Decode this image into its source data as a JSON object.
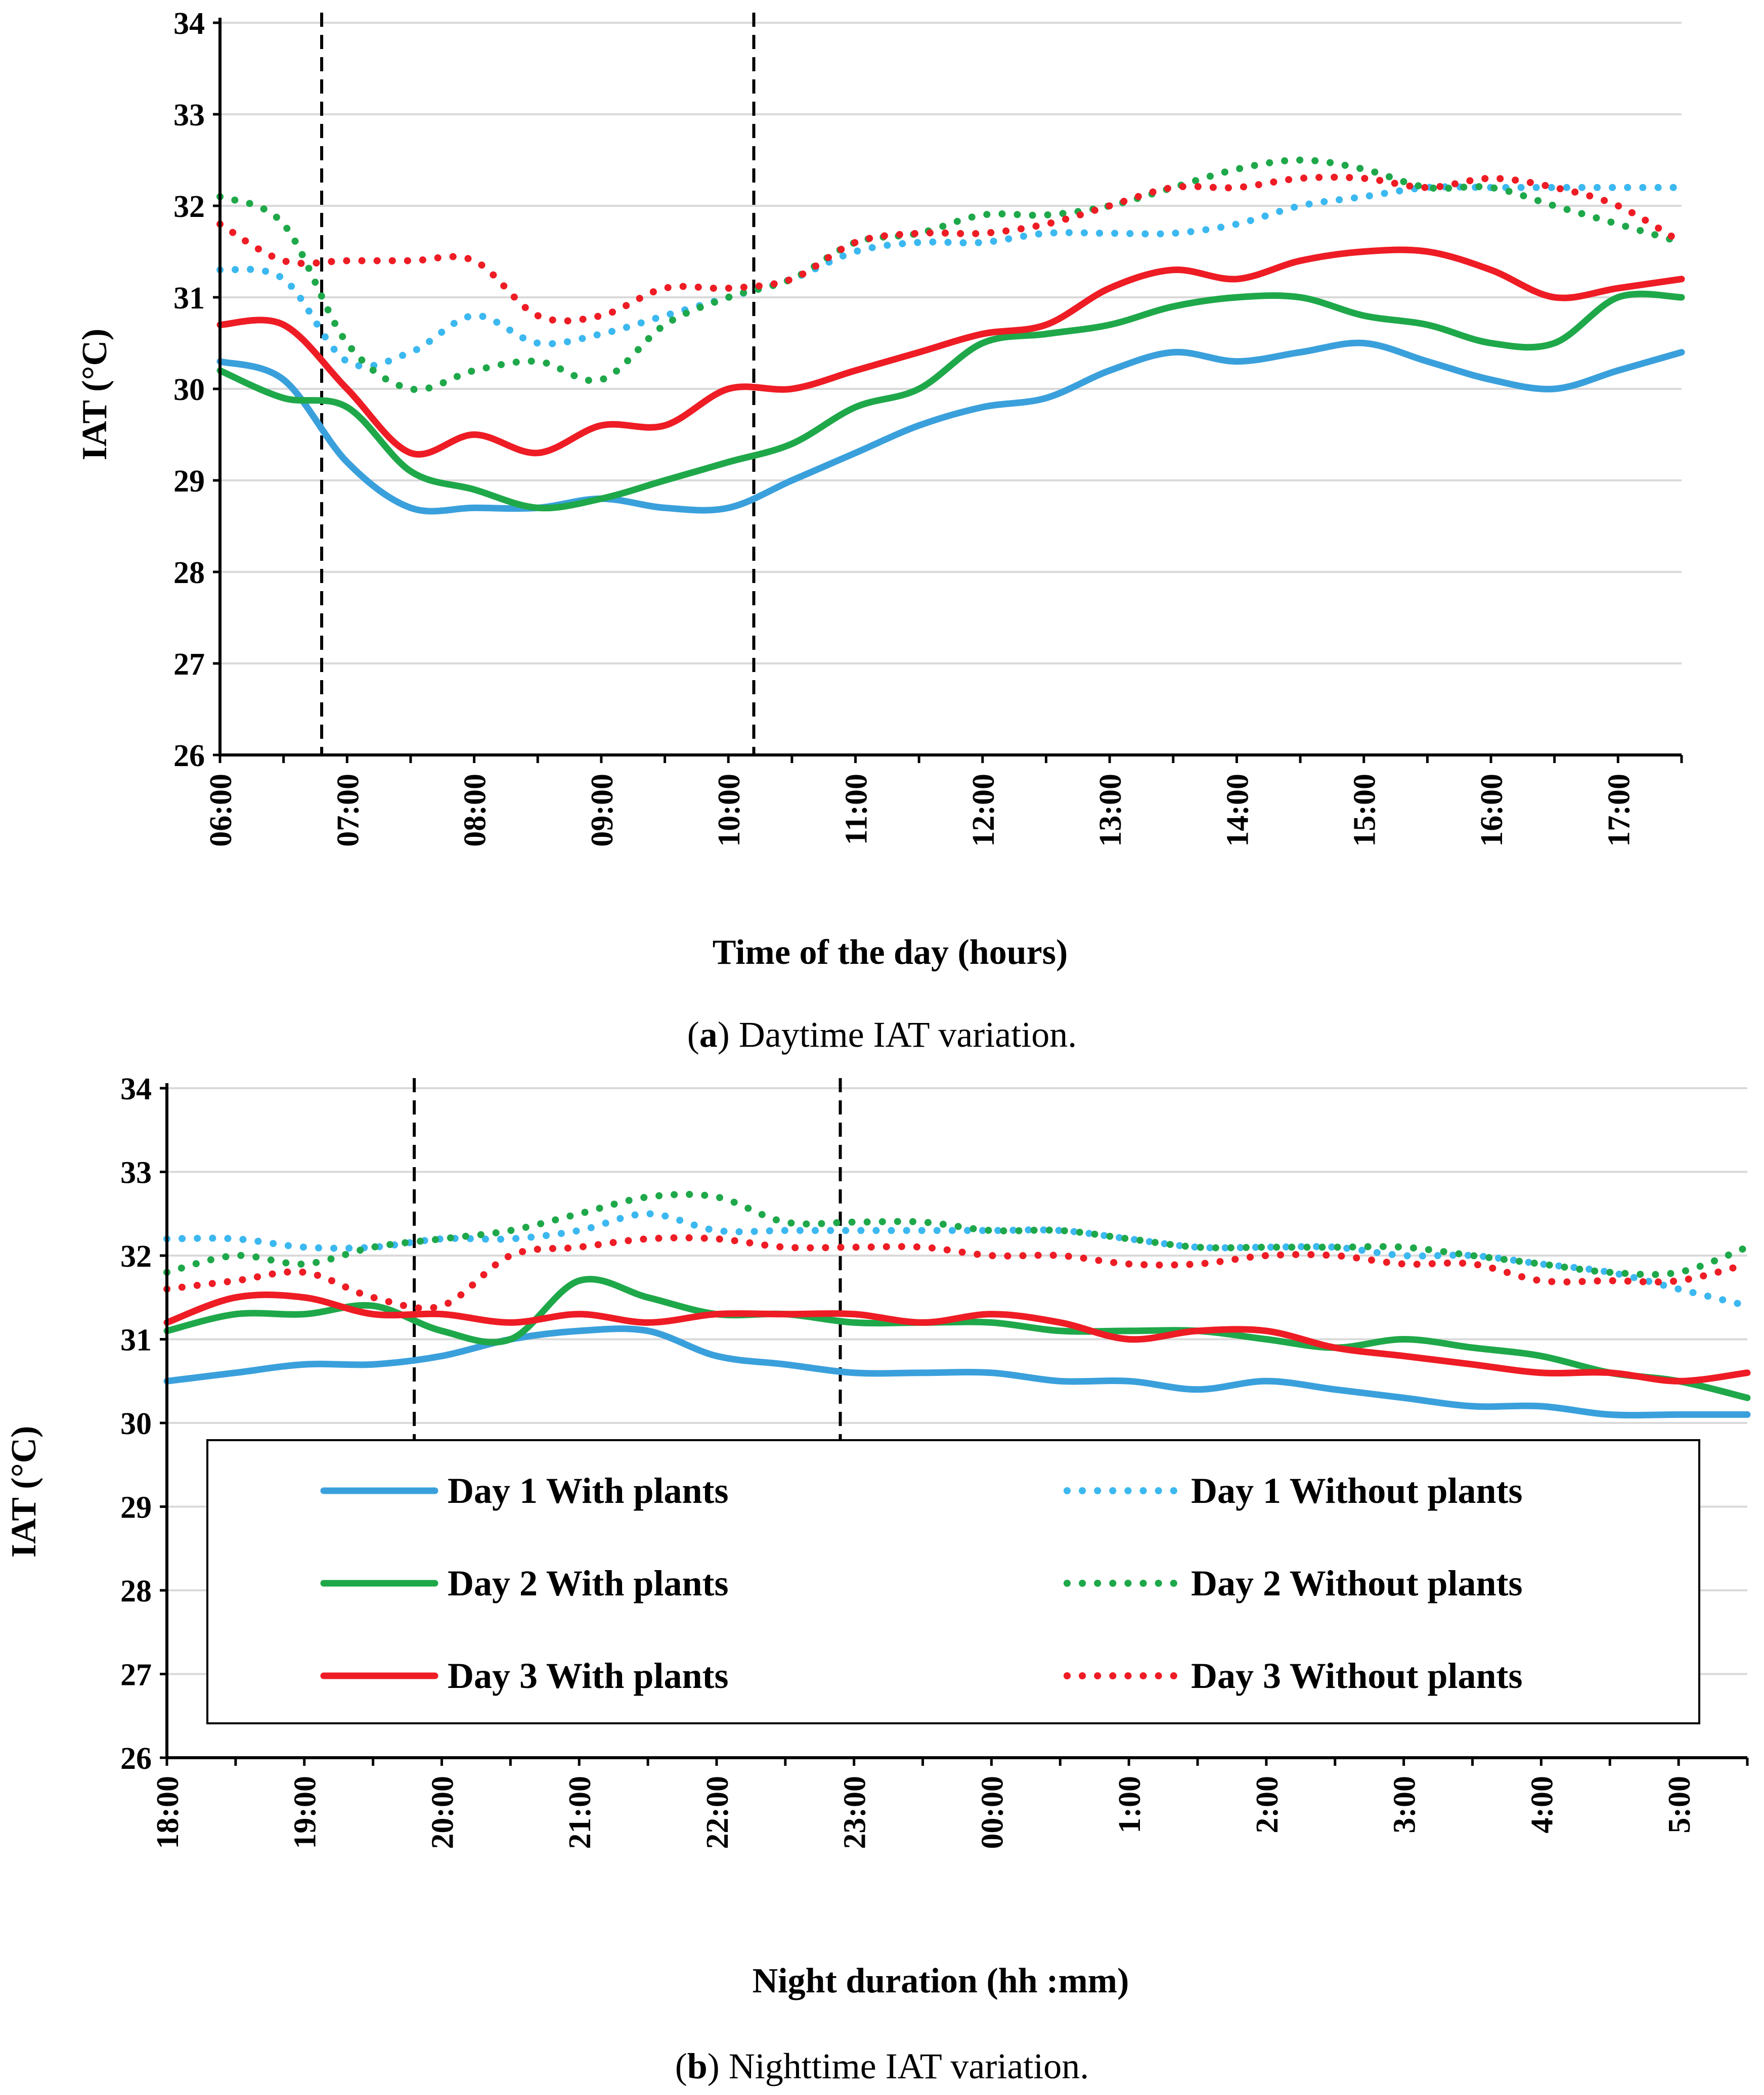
{
  "colors": {
    "day1": "#3aa0dc",
    "day2": "#1fa84a",
    "day3": "#ee1c24",
    "day1_dot": "#3cb8f0",
    "day2_dot": "#1fa84a",
    "day3_dot": "#ee1c24"
  },
  "legend": {
    "items": [
      {
        "label": "Day 1 With plants",
        "color_key": "day1",
        "style": "solid"
      },
      {
        "label": "Day 1 Without plants",
        "color_key": "day1_dot",
        "style": "dotted"
      },
      {
        "label": "Day 2 With plants",
        "color_key": "day2",
        "style": "solid"
      },
      {
        "label": "Day 2 Without plants",
        "color_key": "day2_dot",
        "style": "dotted"
      },
      {
        "label": "Day 3 With plants",
        "color_key": "day3",
        "style": "solid"
      },
      {
        "label": "Day 3 Without plants",
        "color_key": "day3_dot",
        "style": "dotted"
      }
    ]
  },
  "chart_data": [
    {
      "type": "line",
      "caption_lead": "a",
      "caption_text": "Daytime IAT variation.",
      "xlabel": "Time of the day (hours)",
      "ylabel": "IAT (°C)",
      "ylim": [
        26,
        34
      ],
      "yticks": [
        26,
        27,
        28,
        29,
        30,
        31,
        32,
        33,
        34
      ],
      "xlim": [
        0,
        11.5
      ],
      "xticks": [
        0,
        1,
        2,
        3,
        4,
        5,
        6,
        7,
        8,
        9,
        10,
        11
      ],
      "xtick_labels": [
        "06:00",
        "07:00",
        "08:00",
        "09:00",
        "10:00",
        "11:00",
        "12:00",
        "13:00",
        "14:00",
        "15:00",
        "16:00",
        "17:00"
      ],
      "grid": true,
      "vlines": [
        0.8,
        4.2
      ],
      "x": [
        0,
        0.5,
        1,
        1.5,
        2,
        2.5,
        3,
        3.5,
        4,
        4.5,
        5,
        5.5,
        6,
        6.5,
        7,
        7.5,
        8,
        8.5,
        9,
        9.5,
        10,
        10.5,
        11,
        11.5
      ],
      "series": [
        {
          "name": "Day 1 With plants",
          "color_key": "day1",
          "style": "solid",
          "values": [
            30.3,
            30.1,
            29.2,
            28.7,
            28.7,
            28.7,
            28.8,
            28.7,
            28.7,
            29.0,
            29.3,
            29.6,
            29.8,
            29.9,
            30.2,
            30.4,
            30.3,
            30.4,
            30.5,
            30.3,
            30.1,
            30.0,
            30.2,
            30.4
          ]
        },
        {
          "name": "Day 2 With plants",
          "color_key": "day2",
          "style": "solid",
          "values": [
            30.2,
            29.9,
            29.8,
            29.1,
            28.9,
            28.7,
            28.8,
            29.0,
            29.2,
            29.4,
            29.8,
            30.0,
            30.5,
            30.6,
            30.7,
            30.9,
            31.0,
            31.0,
            30.8,
            30.7,
            30.5,
            30.5,
            31.0,
            31.0
          ]
        },
        {
          "name": "Day 3 With plants",
          "color_key": "day3",
          "style": "solid",
          "values": [
            30.7,
            30.7,
            30.0,
            29.3,
            29.5,
            29.3,
            29.6,
            29.6,
            30.0,
            30.0,
            30.2,
            30.4,
            30.6,
            30.7,
            31.1,
            31.3,
            31.2,
            31.4,
            31.5,
            31.5,
            31.3,
            31.0,
            31.1,
            31.2
          ]
        },
        {
          "name": "Day 1 Without plants",
          "color_key": "day1_dot",
          "style": "dotted",
          "values": [
            31.3,
            31.2,
            30.3,
            30.4,
            30.8,
            30.5,
            30.6,
            30.8,
            31.0,
            31.2,
            31.5,
            31.6,
            31.6,
            31.7,
            31.7,
            31.7,
            31.8,
            32.0,
            32.1,
            32.2,
            32.2,
            32.2,
            32.2,
            32.2
          ]
        },
        {
          "name": "Day 2 Without plants",
          "color_key": "day2_dot",
          "style": "dotted",
          "values": [
            32.1,
            31.8,
            30.5,
            30.0,
            30.2,
            30.3,
            30.1,
            30.7,
            31.0,
            31.2,
            31.6,
            31.7,
            31.9,
            31.9,
            32.0,
            32.2,
            32.4,
            32.5,
            32.4,
            32.2,
            32.2,
            32.0,
            31.8,
            31.6
          ]
        },
        {
          "name": "Day 3 Without plants",
          "color_key": "day3_dot",
          "style": "dotted",
          "values": [
            31.8,
            31.4,
            31.4,
            31.4,
            31.4,
            30.8,
            30.8,
            31.1,
            31.1,
            31.2,
            31.6,
            31.7,
            31.7,
            31.8,
            32.0,
            32.2,
            32.2,
            32.3,
            32.3,
            32.2,
            32.3,
            32.2,
            32.0,
            31.6
          ]
        }
      ]
    },
    {
      "type": "line",
      "caption_lead": "b",
      "caption_text": "Nighttime IAT variation.",
      "xlabel": "Night duration (hh :mm)",
      "ylabel": "IAT (°C)",
      "ylim": [
        26,
        34
      ],
      "yticks": [
        26,
        27,
        28,
        29,
        30,
        31,
        32,
        33,
        34
      ],
      "xlim": [
        0,
        11.5
      ],
      "xticks": [
        0,
        1,
        2,
        3,
        4,
        5,
        6,
        7,
        8,
        9,
        10,
        11
      ],
      "xtick_labels": [
        "18:00",
        "19:00",
        "20:00",
        "21:00",
        "22:00",
        "23:00",
        "00:00",
        "1:00",
        "2:00",
        "3:00",
        "4:00",
        "5:00"
      ],
      "grid": true,
      "vlines": [
        1.8,
        4.9
      ],
      "x": [
        0,
        0.5,
        1,
        1.5,
        2,
        2.5,
        3,
        3.5,
        4,
        4.5,
        5,
        5.5,
        6,
        6.5,
        7,
        7.5,
        8,
        8.5,
        9,
        9.5,
        10,
        10.5,
        11,
        11.5
      ],
      "series": [
        {
          "name": "Day 1 With plants",
          "color_key": "day1",
          "style": "solid",
          "values": [
            30.5,
            30.6,
            30.7,
            30.7,
            30.8,
            31.0,
            31.1,
            31.1,
            30.8,
            30.7,
            30.6,
            30.6,
            30.6,
            30.5,
            30.5,
            30.4,
            30.5,
            30.4,
            30.3,
            30.2,
            30.2,
            30.1,
            30.1,
            30.1
          ]
        },
        {
          "name": "Day 2 With plants",
          "color_key": "day2",
          "style": "solid",
          "values": [
            31.1,
            31.3,
            31.3,
            31.4,
            31.1,
            31.0,
            31.7,
            31.5,
            31.3,
            31.3,
            31.2,
            31.2,
            31.2,
            31.1,
            31.1,
            31.1,
            31.0,
            30.9,
            31.0,
            30.9,
            30.8,
            30.6,
            30.5,
            30.3
          ]
        },
        {
          "name": "Day 3 With plants",
          "color_key": "day3",
          "style": "solid",
          "values": [
            31.2,
            31.5,
            31.5,
            31.3,
            31.3,
            31.2,
            31.3,
            31.2,
            31.3,
            31.3,
            31.3,
            31.2,
            31.3,
            31.2,
            31.0,
            31.1,
            31.1,
            30.9,
            30.8,
            30.7,
            30.6,
            30.6,
            30.5,
            30.6
          ]
        },
        {
          "name": "Day 1 Without plants",
          "color_key": "day1_dot",
          "style": "dotted",
          "values": [
            32.2,
            32.2,
            32.1,
            32.1,
            32.2,
            32.2,
            32.3,
            32.5,
            32.3,
            32.3,
            32.3,
            32.3,
            32.3,
            32.3,
            32.2,
            32.1,
            32.1,
            32.1,
            32.0,
            32.0,
            31.9,
            31.8,
            31.6,
            31.4
          ]
        },
        {
          "name": "Day 2 Without plants",
          "color_key": "day2_dot",
          "style": "dotted",
          "values": [
            31.8,
            32.0,
            31.9,
            32.1,
            32.2,
            32.3,
            32.5,
            32.7,
            32.7,
            32.4,
            32.4,
            32.4,
            32.3,
            32.3,
            32.2,
            32.1,
            32.1,
            32.1,
            32.1,
            32.0,
            31.9,
            31.8,
            31.8,
            32.1
          ]
        },
        {
          "name": "Day 3 Without plants",
          "color_key": "day3_dot",
          "style": "dotted",
          "values": [
            31.6,
            31.7,
            31.8,
            31.5,
            31.4,
            32.0,
            32.1,
            32.2,
            32.2,
            32.1,
            32.1,
            32.1,
            32.0,
            32.0,
            31.9,
            31.9,
            32.0,
            32.0,
            31.9,
            31.9,
            31.7,
            31.7,
            31.7,
            31.9
          ]
        }
      ]
    }
  ]
}
